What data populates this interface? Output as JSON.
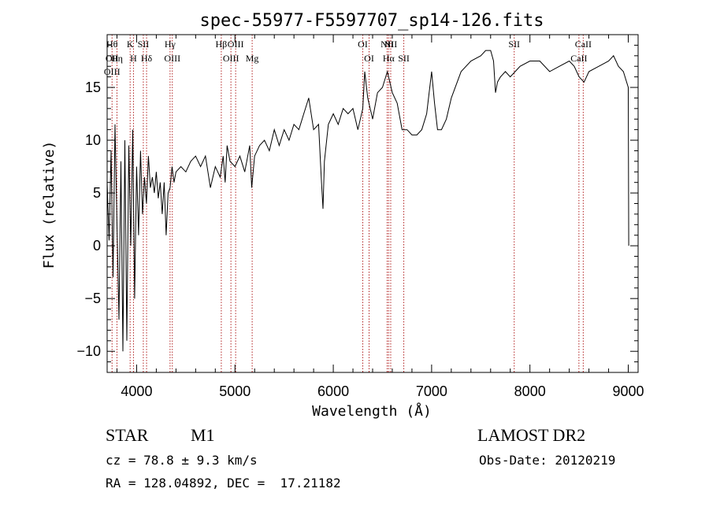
{
  "chart_data": {
    "type": "line",
    "title": "spec-55977-F5597707_sp14-126.fits",
    "xlabel": "Wavelength (Å)",
    "ylabel": "Flux (relative)",
    "xlim": [
      3700,
      9100
    ],
    "ylim": [
      -12,
      20
    ],
    "xticks": [
      4000,
      5000,
      6000,
      7000,
      8000,
      9000
    ],
    "yticks": [
      -10,
      -5,
      0,
      5,
      10,
      15
    ],
    "line_color": "#000000",
    "marker_color": "#b22222",
    "series": [
      {
        "points": [
          [
            3700,
            6.0
          ],
          [
            3720,
            0.5
          ],
          [
            3740,
            9.0
          ],
          [
            3760,
            -3.0
          ],
          [
            3780,
            11.5
          ],
          [
            3800,
            2.0
          ],
          [
            3820,
            -7.0
          ],
          [
            3840,
            8.0
          ],
          [
            3860,
            -10.0
          ],
          [
            3880,
            10.0
          ],
          [
            3900,
            -9.0
          ],
          [
            3920,
            9.5
          ],
          [
            3940,
            0.0
          ],
          [
            3960,
            11.0
          ],
          [
            3980,
            -5.0
          ],
          [
            4000,
            7.5
          ],
          [
            4020,
            1.0
          ],
          [
            4040,
            9.0
          ],
          [
            4060,
            3.0
          ],
          [
            4080,
            6.5
          ],
          [
            4100,
            4.0
          ],
          [
            4120,
            8.5
          ],
          [
            4140,
            5.5
          ],
          [
            4160,
            6.5
          ],
          [
            4180,
            5.0
          ],
          [
            4200,
            7.0
          ],
          [
            4220,
            4.5
          ],
          [
            4240,
            6.0
          ],
          [
            4260,
            3.0
          ],
          [
            4280,
            6.0
          ],
          [
            4300,
            1.0
          ],
          [
            4320,
            5.0
          ],
          [
            4340,
            5.5
          ],
          [
            4360,
            7.5
          ],
          [
            4380,
            6.0
          ],
          [
            4400,
            7.0
          ],
          [
            4450,
            7.5
          ],
          [
            4500,
            7.0
          ],
          [
            4550,
            8.0
          ],
          [
            4600,
            8.5
          ],
          [
            4650,
            7.5
          ],
          [
            4700,
            8.5
          ],
          [
            4750,
            5.5
          ],
          [
            4800,
            7.5
          ],
          [
            4850,
            6.5
          ],
          [
            4880,
            8.5
          ],
          [
            4900,
            6.0
          ],
          [
            4920,
            9.5
          ],
          [
            4950,
            8.0
          ],
          [
            5000,
            7.5
          ],
          [
            5050,
            8.5
          ],
          [
            5100,
            7.0
          ],
          [
            5150,
            9.5
          ],
          [
            5170,
            5.5
          ],
          [
            5200,
            8.5
          ],
          [
            5250,
            9.5
          ],
          [
            5300,
            10.0
          ],
          [
            5350,
            9.0
          ],
          [
            5400,
            11.0
          ],
          [
            5450,
            9.5
          ],
          [
            5500,
            11.0
          ],
          [
            5550,
            10.0
          ],
          [
            5600,
            11.5
          ],
          [
            5650,
            11.0
          ],
          [
            5700,
            12.5
          ],
          [
            5750,
            14.0
          ],
          [
            5800,
            11.0
          ],
          [
            5850,
            11.5
          ],
          [
            5880,
            6.0
          ],
          [
            5895,
            3.5
          ],
          [
            5910,
            8.0
          ],
          [
            5950,
            11.5
          ],
          [
            6000,
            12.5
          ],
          [
            6050,
            11.5
          ],
          [
            6100,
            13.0
          ],
          [
            6150,
            12.5
          ],
          [
            6200,
            13.0
          ],
          [
            6250,
            11.0
          ],
          [
            6300,
            13.0
          ],
          [
            6320,
            16.5
          ],
          [
            6350,
            14.0
          ],
          [
            6400,
            12.0
          ],
          [
            6450,
            14.5
          ],
          [
            6500,
            15.0
          ],
          [
            6550,
            16.5
          ],
          [
            6600,
            14.5
          ],
          [
            6650,
            13.5
          ],
          [
            6700,
            11.0
          ],
          [
            6750,
            11.0
          ],
          [
            6800,
            10.5
          ],
          [
            6850,
            10.5
          ],
          [
            6900,
            11.0
          ],
          [
            6950,
            12.5
          ],
          [
            7000,
            16.5
          ],
          [
            7030,
            13.5
          ],
          [
            7060,
            11.0
          ],
          [
            7100,
            11.0
          ],
          [
            7150,
            12.0
          ],
          [
            7200,
            14.0
          ],
          [
            7300,
            16.5
          ],
          [
            7400,
            17.5
          ],
          [
            7500,
            18.0
          ],
          [
            7550,
            18.5
          ],
          [
            7600,
            18.5
          ],
          [
            7630,
            17.5
          ],
          [
            7650,
            14.5
          ],
          [
            7670,
            15.5
          ],
          [
            7700,
            16.0
          ],
          [
            7750,
            16.5
          ],
          [
            7800,
            16.0
          ],
          [
            7850,
            16.5
          ],
          [
            7900,
            17.0
          ],
          [
            8000,
            17.5
          ],
          [
            8100,
            17.5
          ],
          [
            8200,
            16.5
          ],
          [
            8300,
            17.0
          ],
          [
            8400,
            17.5
          ],
          [
            8450,
            17.0
          ],
          [
            8500,
            16.0
          ],
          [
            8550,
            15.5
          ],
          [
            8600,
            16.5
          ],
          [
            8700,
            17.0
          ],
          [
            8800,
            17.5
          ],
          [
            8850,
            18.0
          ],
          [
            8900,
            17.0
          ],
          [
            8950,
            16.5
          ],
          [
            9000,
            15.0
          ],
          [
            9005,
            0.0
          ]
        ]
      }
    ],
    "line_markers": [
      {
        "wavelength": 3750,
        "labels": [
          "Hθ",
          "OII",
          "OIII"
        ]
      },
      {
        "wavelength": 3800,
        "labels": [
          "Hη"
        ]
      },
      {
        "wavelength": 3934,
        "labels": [
          "K"
        ]
      },
      {
        "wavelength": 3968,
        "labels": [
          "H"
        ]
      },
      {
        "wavelength": 4068,
        "labels": [
          "SII"
        ]
      },
      {
        "wavelength": 4101,
        "labels": [
          "Hδ"
        ]
      },
      {
        "wavelength": 4340,
        "labels": [
          "Hγ"
        ]
      },
      {
        "wavelength": 4363,
        "labels": [
          "OIII"
        ]
      },
      {
        "wavelength": 4861,
        "labels": [
          "Hβ"
        ]
      },
      {
        "wavelength": 4959,
        "labels": [
          "OIII"
        ]
      },
      {
        "wavelength": 5007,
        "labels": [
          "OIII"
        ]
      },
      {
        "wavelength": 5175,
        "labels": [
          "Mg"
        ]
      },
      {
        "wavelength": 6300,
        "labels": [
          "OI"
        ]
      },
      {
        "wavelength": 6364,
        "labels": [
          "OI"
        ]
      },
      {
        "wavelength": 6548,
        "labels": [
          "NII"
        ]
      },
      {
        "wavelength": 6563,
        "labels": [
          "Hα"
        ]
      },
      {
        "wavelength": 6584,
        "labels": [
          "NII"
        ]
      },
      {
        "wavelength": 6717,
        "labels": [
          "SII"
        ]
      },
      {
        "wavelength": 7840,
        "labels": [
          "SII"
        ]
      },
      {
        "wavelength": 8498,
        "labels": [
          "CaII"
        ]
      },
      {
        "wavelength": 8542,
        "labels": [
          "CaII"
        ]
      }
    ]
  },
  "info": {
    "object_class": "STAR",
    "subclass": "M1",
    "survey": "LAMOST DR2",
    "cz": "cz = 78.8 ± 9.3 km/s",
    "obs_date": "Obs-Date: 20120219",
    "coords": "RA = 128.04892, DEC =  17.21182"
  }
}
